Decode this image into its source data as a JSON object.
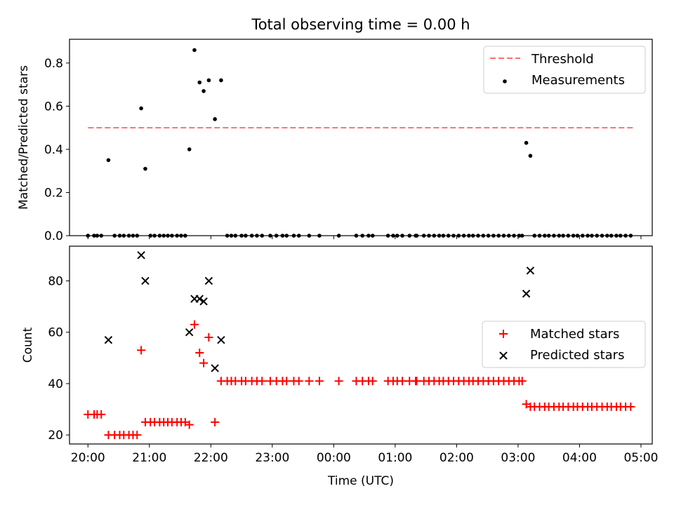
{
  "chart_data": [
    {
      "type": "scatter",
      "title": "Total observing time = 0.00 h",
      "xlabel": "",
      "ylabel": "Matched/Predicted stars",
      "xlim": [
        "19:42",
        "05:11"
      ],
      "ylim": [
        0.0,
        0.91
      ],
      "x_ticks": [
        "20:00",
        "21:00",
        "22:00",
        "23:00",
        "00:00",
        "01:00",
        "02:00",
        "03:00",
        "04:00",
        "05:00"
      ],
      "y_ticks": [
        "0.0",
        "0.2",
        "0.4",
        "0.6",
        "0.8"
      ],
      "legend_position": "top-right",
      "threshold": {
        "name": "Threshold",
        "value": 0.5,
        "x_start": "20:00",
        "x_end": "04:53",
        "color": "#ff7070",
        "style": "dashed"
      },
      "series": [
        {
          "name": "Measurements",
          "color": "#000000",
          "marker": "dot",
          "points": [
            [
              "20:00",
              0
            ],
            [
              "20:06",
              0
            ],
            [
              "20:09",
              0
            ],
            [
              "20:13",
              0
            ],
            [
              "20:20",
              0.35
            ],
            [
              "20:26",
              0
            ],
            [
              "20:31",
              0
            ],
            [
              "20:35",
              0
            ],
            [
              "20:40",
              0
            ],
            [
              "20:44",
              0
            ],
            [
              "20:48",
              0
            ],
            [
              "20:52",
              0.59
            ],
            [
              "20:56",
              0.31
            ],
            [
              "21:01",
              0
            ],
            [
              "21:05",
              0
            ],
            [
              "21:10",
              0
            ],
            [
              "21:14",
              0
            ],
            [
              "21:18",
              0
            ],
            [
              "21:22",
              0
            ],
            [
              "21:27",
              0
            ],
            [
              "21:31",
              0
            ],
            [
              "21:35",
              0
            ],
            [
              "21:39",
              0.4
            ],
            [
              "21:44",
              0.86
            ],
            [
              "21:49",
              0.71
            ],
            [
              "21:53",
              0.67
            ],
            [
              "21:58",
              0.72
            ],
            [
              "22:04",
              0.54
            ],
            [
              "22:10",
              0.72
            ],
            [
              "22:16",
              0
            ],
            [
              "22:20",
              0
            ],
            [
              "22:24",
              0
            ],
            [
              "22:30",
              0
            ],
            [
              "22:34",
              0
            ],
            [
              "22:40",
              0
            ],
            [
              "22:45",
              0
            ],
            [
              "22:50",
              0
            ],
            [
              "22:58",
              0
            ],
            [
              "23:04",
              0
            ],
            [
              "23:10",
              0
            ],
            [
              "23:14",
              0
            ],
            [
              "23:21",
              0
            ],
            [
              "23:26",
              0
            ],
            [
              "23:36",
              0
            ],
            [
              "23:46",
              0
            ],
            [
              "00:05",
              0
            ],
            [
              "00:22",
              0
            ],
            [
              "00:28",
              0
            ],
            [
              "00:34",
              0
            ],
            [
              "00:38",
              0
            ],
            [
              "00:53",
              0
            ],
            [
              "00:58",
              0
            ],
            [
              "01:02",
              0
            ],
            [
              "01:07",
              0
            ],
            [
              "01:14",
              0
            ],
            [
              "01:20",
              0
            ],
            [
              "01:21",
              0
            ],
            [
              "01:28",
              0
            ],
            [
              "01:33",
              0
            ],
            [
              "01:38",
              0
            ],
            [
              "01:43",
              0
            ],
            [
              "01:47",
              0
            ],
            [
              "01:52",
              0
            ],
            [
              "01:57",
              0
            ],
            [
              "02:02",
              0
            ],
            [
              "02:07",
              0
            ],
            [
              "02:12",
              0
            ],
            [
              "02:16",
              0
            ],
            [
              "02:21",
              0
            ],
            [
              "02:26",
              0
            ],
            [
              "02:31",
              0
            ],
            [
              "02:36",
              0
            ],
            [
              "02:41",
              0
            ],
            [
              "02:46",
              0
            ],
            [
              "02:51",
              0
            ],
            [
              "02:56",
              0
            ],
            [
              "03:01",
              0
            ],
            [
              "03:04",
              0
            ],
            [
              "03:08",
              0.43
            ],
            [
              "03:12",
              0.37
            ],
            [
              "03:16",
              0
            ],
            [
              "03:21",
              0
            ],
            [
              "03:26",
              0
            ],
            [
              "03:30",
              0
            ],
            [
              "03:35",
              0
            ],
            [
              "03:40",
              0
            ],
            [
              "03:44",
              0
            ],
            [
              "03:49",
              0
            ],
            [
              "03:54",
              0
            ],
            [
              "03:58",
              0
            ],
            [
              "04:03",
              0
            ],
            [
              "04:08",
              0
            ],
            [
              "04:12",
              0
            ],
            [
              "04:17",
              0
            ],
            [
              "04:22",
              0
            ],
            [
              "04:27",
              0
            ],
            [
              "04:31",
              0
            ],
            [
              "04:36",
              0
            ],
            [
              "04:40",
              0
            ],
            [
              "04:45",
              0
            ],
            [
              "04:50",
              0
            ]
          ]
        }
      ]
    },
    {
      "type": "scatter",
      "title": "",
      "xlabel": "Time (UTC)",
      "ylabel": "Count",
      "xlim": [
        "19:42",
        "05:11"
      ],
      "ylim": [
        16.5,
        93.5
      ],
      "x_ticks": [
        "20:00",
        "21:00",
        "22:00",
        "23:00",
        "00:00",
        "01:00",
        "02:00",
        "03:00",
        "04:00",
        "05:00"
      ],
      "y_ticks": [
        "20",
        "40",
        "60",
        "80"
      ],
      "legend_position": "center-right",
      "series": [
        {
          "name": "Matched stars",
          "color": "#ff0000",
          "marker": "plus",
          "points": [
            [
              "20:00",
              28
            ],
            [
              "20:06",
              28
            ],
            [
              "20:09",
              28
            ],
            [
              "20:13",
              28
            ],
            [
              "20:20",
              20
            ],
            [
              "20:26",
              20
            ],
            [
              "20:31",
              20
            ],
            [
              "20:35",
              20
            ],
            [
              "20:40",
              20
            ],
            [
              "20:44",
              20
            ],
            [
              "20:48",
              20
            ],
            [
              "20:52",
              53
            ],
            [
              "20:56",
              25
            ],
            [
              "21:01",
              25
            ],
            [
              "21:05",
              25
            ],
            [
              "21:10",
              25
            ],
            [
              "21:14",
              25
            ],
            [
              "21:18",
              25
            ],
            [
              "21:22",
              25
            ],
            [
              "21:27",
              25
            ],
            [
              "21:31",
              25
            ],
            [
              "21:35",
              25
            ],
            [
              "21:39",
              24
            ],
            [
              "21:44",
              63
            ],
            [
              "21:49",
              52
            ],
            [
              "21:53",
              48
            ],
            [
              "21:58",
              58
            ],
            [
              "22:04",
              25
            ],
            [
              "22:10",
              41
            ],
            [
              "22:16",
              41
            ],
            [
              "22:20",
              41
            ],
            [
              "22:24",
              41
            ],
            [
              "22:30",
              41
            ],
            [
              "22:34",
              41
            ],
            [
              "22:40",
              41
            ],
            [
              "22:45",
              41
            ],
            [
              "22:50",
              41
            ],
            [
              "22:58",
              41
            ],
            [
              "23:04",
              41
            ],
            [
              "23:10",
              41
            ],
            [
              "23:14",
              41
            ],
            [
              "23:21",
              41
            ],
            [
              "23:26",
              41
            ],
            [
              "23:36",
              41
            ],
            [
              "23:46",
              41
            ],
            [
              "00:05",
              41
            ],
            [
              "00:22",
              41
            ],
            [
              "00:28",
              41
            ],
            [
              "00:34",
              41
            ],
            [
              "00:38",
              41
            ],
            [
              "00:53",
              41
            ],
            [
              "00:58",
              41
            ],
            [
              "01:02",
              41
            ],
            [
              "01:07",
              41
            ],
            [
              "01:14",
              41
            ],
            [
              "01:20",
              41
            ],
            [
              "01:21",
              41
            ],
            [
              "01:28",
              41
            ],
            [
              "01:33",
              41
            ],
            [
              "01:38",
              41
            ],
            [
              "01:43",
              41
            ],
            [
              "01:47",
              41
            ],
            [
              "01:52",
              41
            ],
            [
              "01:57",
              41
            ],
            [
              "02:02",
              41
            ],
            [
              "02:07",
              41
            ],
            [
              "02:12",
              41
            ],
            [
              "02:16",
              41
            ],
            [
              "02:21",
              41
            ],
            [
              "02:26",
              41
            ],
            [
              "02:31",
              41
            ],
            [
              "02:36",
              41
            ],
            [
              "02:41",
              41
            ],
            [
              "02:46",
              41
            ],
            [
              "02:51",
              41
            ],
            [
              "02:56",
              41
            ],
            [
              "03:01",
              41
            ],
            [
              "03:04",
              41
            ],
            [
              "03:08",
              32
            ],
            [
              "03:12",
              31
            ],
            [
              "03:16",
              31
            ],
            [
              "03:21",
              31
            ],
            [
              "03:26",
              31
            ],
            [
              "03:30",
              31
            ],
            [
              "03:35",
              31
            ],
            [
              "03:40",
              31
            ],
            [
              "03:44",
              31
            ],
            [
              "03:49",
              31
            ],
            [
              "03:54",
              31
            ],
            [
              "03:58",
              31
            ],
            [
              "04:03",
              31
            ],
            [
              "04:08",
              31
            ],
            [
              "04:12",
              31
            ],
            [
              "04:17",
              31
            ],
            [
              "04:22",
              31
            ],
            [
              "04:27",
              31
            ],
            [
              "04:31",
              31
            ],
            [
              "04:36",
              31
            ],
            [
              "04:40",
              31
            ],
            [
              "04:45",
              31
            ],
            [
              "04:50",
              31
            ]
          ]
        },
        {
          "name": "Predicted stars",
          "color": "#000000",
          "marker": "x",
          "points": [
            [
              "20:20",
              57
            ],
            [
              "20:52",
              90
            ],
            [
              "20:56",
              80
            ],
            [
              "21:39",
              60
            ],
            [
              "21:44",
              73
            ],
            [
              "21:49",
              73
            ],
            [
              "21:53",
              72
            ],
            [
              "21:58",
              80
            ],
            [
              "22:04",
              46
            ],
            [
              "22:10",
              57
            ],
            [
              "03:08",
              75
            ],
            [
              "03:12",
              84
            ]
          ]
        }
      ]
    }
  ]
}
